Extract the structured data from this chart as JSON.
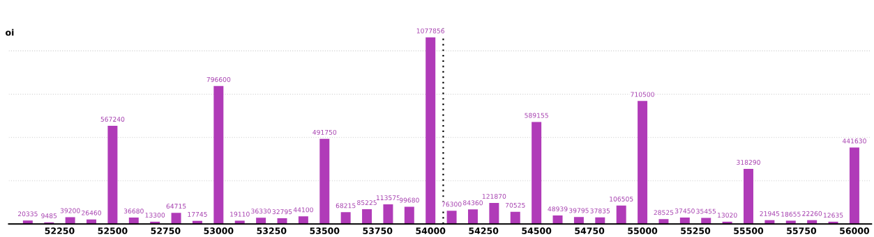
{
  "chart_data": {
    "type": "bar",
    "ylabel": "oi",
    "x": [
      52100,
      52200,
      52300,
      52400,
      52500,
      52600,
      52700,
      52800,
      52900,
      53000,
      53100,
      53200,
      53300,
      53400,
      53500,
      53600,
      53700,
      53800,
      53900,
      54000,
      54100,
      54200,
      54300,
      54400,
      54500,
      54600,
      54700,
      54800,
      54900,
      55000,
      55100,
      55200,
      55300,
      55400,
      55500,
      55600,
      55700,
      55800,
      55900,
      56000
    ],
    "values": [
      20335,
      9485,
      39200,
      26460,
      567240,
      36680,
      13300,
      64715,
      17745,
      796600,
      19110,
      36330,
      32795,
      44100,
      491750,
      68215,
      85225,
      113575,
      99680,
      1077856,
      76300,
      84360,
      121870,
      70525,
      589155,
      48939,
      39795,
      37835,
      106505,
      710500,
      28525,
      37450,
      35455,
      13020,
      318290,
      21945,
      18655,
      22260,
      12635,
      441630
    ],
    "color": "#b03bb8",
    "data_labels": true,
    "xlim": [
      52010,
      56080
    ],
    "xticks": [
      52250,
      52500,
      52750,
      53000,
      53250,
      53500,
      53750,
      54000,
      54250,
      54500,
      54750,
      55000,
      55250,
      55500,
      55750,
      56000
    ],
    "ylim": [
      0,
      1150000
    ],
    "yticks": [
      {
        "value": 0,
        "label": null
      },
      {
        "value": 250000,
        "label": null
      },
      {
        "value": 500000,
        "label": null
      },
      {
        "value": 750000,
        "label": null
      },
      {
        "value": 1000000,
        "label": null
      }
    ],
    "tick_labels": "x",
    "grid": "y",
    "ref_lines": [
      {
        "axis": "x",
        "value": 54060,
        "color": "#000000",
        "line_style": "dotted"
      }
    ]
  }
}
